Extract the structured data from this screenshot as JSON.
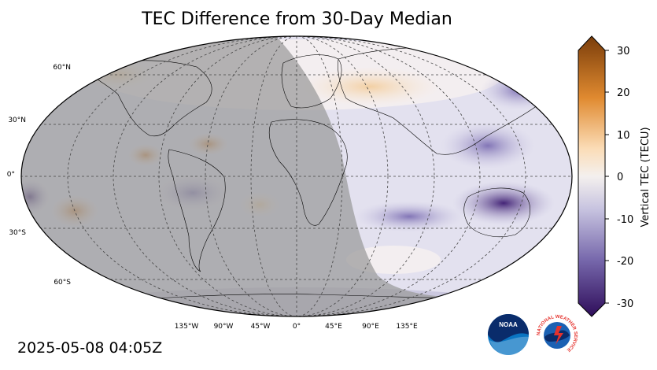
{
  "title": "TEC Difference from 30-Day Median",
  "timestamp": "2025-05-08 04:05Z",
  "colorbar": {
    "label": "Vertical TEC (TECU)",
    "ticks": [
      "30",
      "20",
      "10",
      "0",
      "-10",
      "-20",
      "-30"
    ],
    "min": -30,
    "max": 30,
    "colors": {
      "high": "#7a3d0a",
      "mid_high": "#e89a45",
      "zero": "#f4f0ee",
      "mid_low": "#8f86bd",
      "low": "#2f0d5a"
    }
  },
  "map": {
    "lat_labels": [
      "60°N",
      "30°N",
      "0°",
      "30°S",
      "60°S"
    ],
    "lon_labels": [
      "135°W",
      "90°W",
      "45°W",
      "0°",
      "45°E",
      "90°E",
      "135°E"
    ],
    "night_shade_color": "#9a9a9a"
  },
  "logos": {
    "noaa_text": "NOAA",
    "nws_text": "NATIONAL WEATHER SERVICE"
  }
}
